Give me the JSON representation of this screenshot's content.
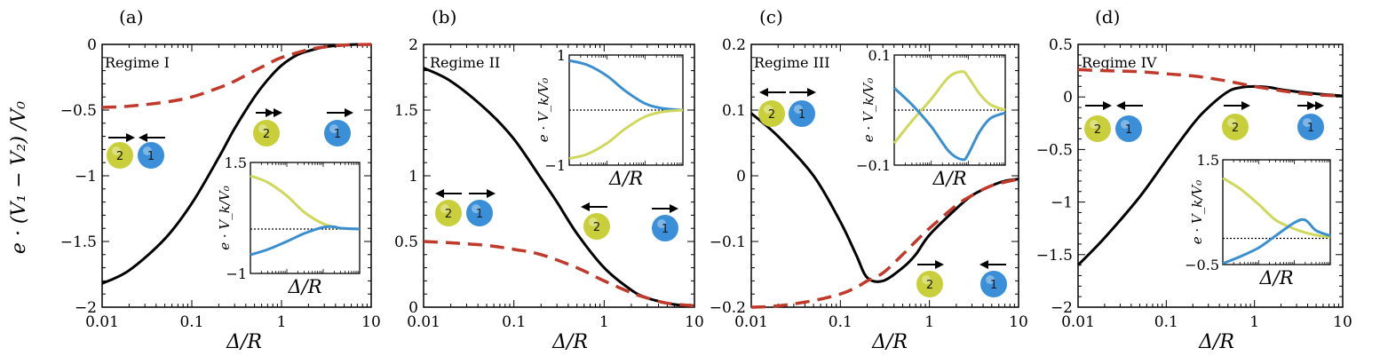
{
  "figure": {
    "y_axis_title": "e · (V₁ − V₂) /V₀",
    "x_axis_title": "Δ/R",
    "inset_y_title": "e · V_k/V₀",
    "inset_x_title": "Δ/R"
  },
  "colors": {
    "black_curve": "#000000",
    "red_dashed": "#c0392b",
    "particle1_blue": "#3a8fd8",
    "particle2_yellow": "#c9cf3a",
    "inset_yellow": "#cfd85a",
    "inset_blue": "#3a8fd0"
  },
  "chart_data": [
    {
      "type": "line",
      "panel": "(a)",
      "regime": "Regime I",
      "xscale": "log",
      "xlim": [
        0.01,
        10
      ],
      "ylim": [
        -2,
        0
      ],
      "xticks": [
        "0.01",
        "0.1",
        "1",
        "10"
      ],
      "yticks": [
        "−2",
        "−1.5",
        "−1",
        "−0.5",
        "0"
      ],
      "series": [
        {
          "style": "solid-black",
          "x": [
            0.01,
            0.02,
            0.05,
            0.1,
            0.2,
            0.3,
            0.5,
            0.7,
            1,
            1.5,
            2,
            3,
            5,
            7,
            10
          ],
          "y": [
            -1.82,
            -1.72,
            -1.48,
            -1.21,
            -0.86,
            -0.64,
            -0.4,
            -0.27,
            -0.16,
            -0.08,
            -0.05,
            -0.02,
            -0.005,
            0,
            0
          ]
        },
        {
          "style": "dashed-red",
          "x": [
            0.01,
            0.02,
            0.05,
            0.1,
            0.2,
            0.3,
            0.5,
            0.7,
            1,
            2,
            3,
            5,
            10
          ],
          "y": [
            -0.48,
            -0.47,
            -0.44,
            -0.4,
            -0.33,
            -0.28,
            -0.2,
            -0.15,
            -0.1,
            -0.04,
            -0.02,
            -0.005,
            0
          ]
        }
      ],
      "inset": {
        "ylim": [
          -1,
          1.5
        ],
        "yticks": [
          "1.5",
          "−1"
        ],
        "series": [
          {
            "color": "yellow",
            "x": [
              0.01,
              0.03,
              0.1,
              0.3,
              1,
              3,
              10
            ],
            "y": [
              1.2,
              1.05,
              0.75,
              0.38,
              0.12,
              0.02,
              0
            ]
          },
          {
            "color": "blue",
            "x": [
              0.01,
              0.03,
              0.1,
              0.3,
              1,
              2,
              3,
              10
            ],
            "y": [
              -0.58,
              -0.46,
              -0.28,
              -0.1,
              0.04,
              0.05,
              0.02,
              0
            ]
          }
        ]
      }
    },
    {
      "type": "line",
      "panel": "(b)",
      "regime": "Regime II",
      "xscale": "log",
      "xlim": [
        0.01,
        10
      ],
      "ylim": [
        0,
        2
      ],
      "xticks": [
        "0.01",
        "0.1",
        "1",
        "10"
      ],
      "yticks": [
        "0",
        "0.5",
        "1",
        "1.5",
        "2"
      ],
      "series": [
        {
          "style": "solid-black",
          "x": [
            0.01,
            0.02,
            0.05,
            0.1,
            0.2,
            0.3,
            0.5,
            1,
            2,
            3,
            5,
            7,
            10
          ],
          "y": [
            1.82,
            1.72,
            1.5,
            1.28,
            0.98,
            0.8,
            0.56,
            0.3,
            0.13,
            0.07,
            0.03,
            0.015,
            0.01
          ]
        },
        {
          "style": "dashed-red",
          "x": [
            0.01,
            0.02,
            0.05,
            0.1,
            0.2,
            0.5,
            1,
            2,
            3,
            5,
            10
          ],
          "y": [
            0.5,
            0.49,
            0.47,
            0.44,
            0.4,
            0.3,
            0.2,
            0.11,
            0.07,
            0.03,
            0.01
          ]
        }
      ],
      "inset": {
        "ylim": [
          -1,
          1
        ],
        "yticks": [
          "1",
          "−1"
        ],
        "series": [
          {
            "color": "blue",
            "x": [
              0.01,
              0.03,
              0.1,
              0.3,
              1,
              3,
              10
            ],
            "y": [
              0.9,
              0.82,
              0.62,
              0.35,
              0.12,
              0.03,
              0
            ]
          },
          {
            "color": "yellow",
            "x": [
              0.01,
              0.03,
              0.1,
              0.3,
              1,
              3,
              10
            ],
            "y": [
              -0.88,
              -0.8,
              -0.6,
              -0.34,
              -0.12,
              -0.03,
              0
            ]
          }
        ]
      }
    },
    {
      "type": "line",
      "panel": "(c)",
      "regime": "Regime III",
      "xscale": "log",
      "xlim": [
        0.01,
        10
      ],
      "ylim": [
        -0.2,
        0.2
      ],
      "xticks": [
        "0.01",
        "0.1",
        "1",
        "10"
      ],
      "yticks": [
        "−0.2",
        "−0.1",
        "0",
        "0.1",
        "0.2"
      ],
      "series": [
        {
          "style": "solid-black",
          "x": [
            0.01,
            0.02,
            0.05,
            0.1,
            0.15,
            0.2,
            0.3,
            0.5,
            0.7,
            1,
            2,
            3,
            5,
            7,
            10
          ],
          "y": [
            0.095,
            0.06,
            0.0,
            -0.07,
            -0.12,
            -0.155,
            -0.16,
            -0.14,
            -0.12,
            -0.09,
            -0.05,
            -0.03,
            -0.015,
            -0.008,
            -0.005
          ]
        },
        {
          "style": "dashed-red",
          "x": [
            0.01,
            0.02,
            0.05,
            0.1,
            0.15,
            0.2,
            0.3,
            0.5,
            0.7,
            1,
            2,
            3,
            5,
            10
          ],
          "y": [
            -0.2,
            -0.198,
            -0.19,
            -0.18,
            -0.17,
            -0.16,
            -0.148,
            -0.12,
            -0.1,
            -0.08,
            -0.045,
            -0.03,
            -0.015,
            -0.005
          ]
        }
      ],
      "inset": {
        "ylim": [
          -0.1,
          0.1
        ],
        "yticks": [
          "0.1",
          "−0.1"
        ],
        "series": [
          {
            "color": "yellow",
            "x": [
              0.01,
              0.03,
              0.1,
              0.3,
              0.7,
              1,
              2,
              4,
              10
            ],
            "y": [
              -0.06,
              -0.02,
              0.02,
              0.06,
              0.07,
              0.06,
              0.03,
              0.01,
              0
            ]
          },
          {
            "color": "blue",
            "x": [
              0.01,
              0.03,
              0.1,
              0.3,
              0.7,
              1,
              2,
              4,
              10
            ],
            "y": [
              0.04,
              0.01,
              -0.03,
              -0.075,
              -0.09,
              -0.08,
              -0.04,
              -0.015,
              -0.005
            ]
          }
        ]
      }
    },
    {
      "type": "line",
      "panel": "(d)",
      "regime": "Regime IV",
      "xscale": "log",
      "xlim": [
        0.01,
        10
      ],
      "ylim": [
        -2,
        0.5
      ],
      "xticks": [
        "0.01",
        "0.1",
        "1",
        "10"
      ],
      "yticks": [
        "−2",
        "−1.5",
        "−1",
        "−0.5",
        "0",
        "0.5"
      ],
      "series": [
        {
          "style": "solid-black",
          "x": [
            0.01,
            0.02,
            0.05,
            0.1,
            0.2,
            0.3,
            0.5,
            0.7,
            1,
            1.5,
            2,
            3,
            5,
            10
          ],
          "y": [
            -1.6,
            -1.34,
            -0.95,
            -0.6,
            -0.26,
            -0.1,
            0.05,
            0.09,
            0.1,
            0.09,
            0.07,
            0.05,
            0.03,
            0.01
          ]
        },
        {
          "style": "dashed-red",
          "x": [
            0.01,
            0.02,
            0.05,
            0.1,
            0.2,
            0.3,
            0.5,
            1,
            2,
            3,
            5,
            10
          ],
          "y": [
            0.26,
            0.25,
            0.24,
            0.22,
            0.2,
            0.18,
            0.15,
            0.1,
            0.06,
            0.04,
            0.02,
            0.01
          ]
        }
      ],
      "inset": {
        "ylim": [
          -0.5,
          1.5
        ],
        "yticks": [
          "1.5",
          "−0.5"
        ],
        "series": [
          {
            "color": "yellow",
            "x": [
              0.01,
              0.03,
              0.1,
              0.3,
              1,
              3,
              10
            ],
            "y": [
              1.15,
              0.95,
              0.65,
              0.35,
              0.18,
              0.08,
              0.02
            ]
          },
          {
            "color": "blue",
            "x": [
              0.01,
              0.03,
              0.1,
              0.3,
              1,
              2,
              4,
              10
            ],
            "y": [
              -0.48,
              -0.35,
              -0.18,
              0.05,
              0.3,
              0.35,
              0.15,
              0.05
            ]
          }
        ]
      }
    }
  ],
  "particles": {
    "label_1": "1",
    "label_2": "2"
  }
}
